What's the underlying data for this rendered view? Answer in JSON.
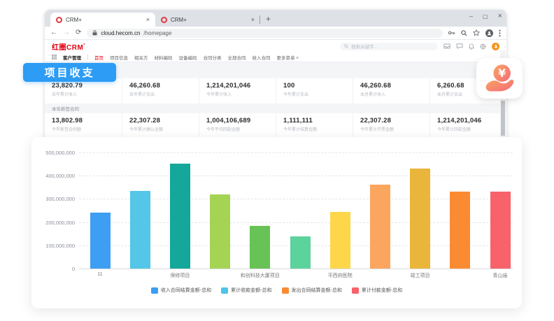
{
  "window": {
    "minimize": "–",
    "maximize": "▢",
    "close": "×"
  },
  "browser": {
    "tabs": [
      {
        "title": "CRM+",
        "close": "×"
      },
      {
        "title": "CRM+",
        "close": "×"
      }
    ],
    "new_tab": "+",
    "back": "←",
    "forward": "→",
    "reload": "⟳",
    "omnibox": {
      "host": "cloud.hecom.cn",
      "path": "/homepage"
    }
  },
  "crm": {
    "logo": "红圈CRM",
    "logo_mark": "°",
    "search_placeholder": "搜索关键字...",
    "nav_items": [
      {
        "label": "客户管理",
        "style": "bold"
      },
      {
        "label": "首页",
        "style": "active"
      },
      {
        "label": "项目信息",
        "style": ""
      },
      {
        "label": "相关方",
        "style": ""
      },
      {
        "label": "材料编码",
        "style": ""
      },
      {
        "label": "设备编码",
        "style": ""
      },
      {
        "label": "合同分类",
        "style": ""
      },
      {
        "label": "全部合同",
        "style": ""
      },
      {
        "label": "收入合同",
        "style": ""
      },
      {
        "label": "更多菜单 ˅",
        "style": ""
      }
    ],
    "stats_row1": [
      {
        "value": "23,820.79",
        "caption": "去年累计收入"
      },
      {
        "value": "46,260.68",
        "caption": "去年累计支出"
      },
      {
        "value": "1,214,201,046",
        "caption": "今年累计收入"
      },
      {
        "value": "100",
        "caption": "今年累计支出"
      },
      {
        "value": "46,260.68",
        "caption": "本月累计收入"
      },
      {
        "value": "6,260.68",
        "caption": "本月累计支出"
      }
    ],
    "section_band": "本年新签合同",
    "stats_row2": [
      {
        "value": "13,802.98",
        "caption": "今年新签合同额"
      },
      {
        "value": "22,307.28",
        "caption": "今年累计确认金额"
      },
      {
        "value": "1,004,106,689",
        "caption": "今年平均回款金额"
      },
      {
        "value": "1,111,111",
        "caption": "今年累计结算金额"
      },
      {
        "value": "22,307.28",
        "caption": "今年累计开票金额"
      },
      {
        "value": "1,214,201,046",
        "caption": "今年累计回款金额"
      }
    ]
  },
  "badge": {
    "label": "项目收支",
    "color": "#2D9CF4"
  },
  "fab": {
    "currency_symbol": "¥"
  },
  "chart_data": {
    "type": "bar",
    "title": "",
    "ylim": [
      0,
      500000000
    ],
    "yticks": [
      0,
      100000000,
      200000000,
      300000000,
      400000000,
      500000000
    ],
    "ytick_labels": [
      "0",
      "100,000,000",
      "200,000,000",
      "300,000,000",
      "400,000,000",
      "500,000,000"
    ],
    "grid": "horizontal-dashed",
    "categories": [
      "11",
      "保修项目",
      "和创科技大厦项目",
      "平西府医院",
      "竣工项目",
      "青山庙"
    ],
    "bars": [
      {
        "value": 242000000,
        "color": "#3D9EF3"
      },
      {
        "value": 333000000,
        "color": "#54C6E8"
      },
      {
        "value": 452000000,
        "color": "#16A79B"
      },
      {
        "value": 318000000,
        "color": "#A5D455"
      },
      {
        "value": 183000000,
        "color": "#67C355"
      },
      {
        "value": 140000000,
        "color": "#5CD29D"
      },
      {
        "value": 245000000,
        "color": "#FDD64A"
      },
      {
        "value": 360000000,
        "color": "#FBA55F"
      },
      {
        "value": 432000000,
        "color": "#E9B53B"
      },
      {
        "value": 330000000,
        "color": "#FB8B33"
      },
      {
        "value": 330000000,
        "color": "#F7626B"
      }
    ],
    "legend_position": "bottom",
    "legend": [
      {
        "label": "收入合同结算金额-总和",
        "color": "#3D9EF3"
      },
      {
        "label": "累计收款金额-总和",
        "color": "#4FC3E8"
      },
      {
        "label": "发出合同结算金额-总和",
        "color": "#FB8B33"
      },
      {
        "label": "累计付款金额-总和",
        "color": "#F7626B"
      }
    ]
  }
}
